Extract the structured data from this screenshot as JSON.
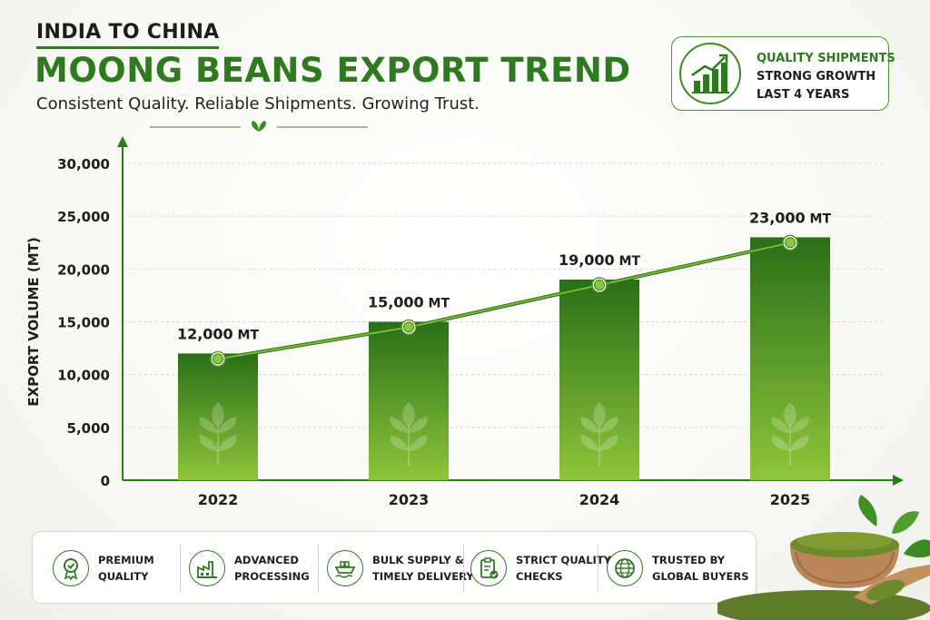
{
  "header": {
    "kicker": "INDIA TO CHINA",
    "title": "MOONG BEANS EXPORT TREND",
    "subtitle": "Consistent Quality. Reliable Shipments. Growing Trust."
  },
  "badge": {
    "lines": [
      "QUALITY SHIPMENTS",
      "STRONG GROWTH",
      "LAST 4 YEARS"
    ],
    "icon": "growth-bar-chart-icon"
  },
  "chart_data": {
    "type": "bar",
    "categories": [
      "2022",
      "2023",
      "2024",
      "2025"
    ],
    "values": [
      12000,
      15000,
      19000,
      23000
    ],
    "data_labels": [
      "12,000",
      "15,000",
      "19,000",
      "23,000"
    ],
    "data_label_unit": "MT",
    "ylabel": "EXPORT VOLUME (MT)",
    "ylim": [
      0,
      30000
    ],
    "y_ticks": [
      "0",
      "5,000",
      "10,000",
      "15,000",
      "20,000",
      "25,000",
      "30,000"
    ],
    "trend_line": true,
    "grid": true,
    "colors": {
      "bar_top": "#2a6f18",
      "bar_bottom": "#8ec53a",
      "line": "#4f9a1f",
      "axis": "#2f7a1f"
    }
  },
  "features": [
    {
      "icon": "quality-medal-icon",
      "lines": [
        "PREMIUM",
        "QUALITY"
      ]
    },
    {
      "icon": "factory-icon",
      "lines": [
        "ADVANCED",
        "PROCESSING"
      ]
    },
    {
      "icon": "cargo-ship-icon",
      "lines": [
        "BULK SUPPLY &",
        "TIMELY DELIVERY"
      ]
    },
    {
      "icon": "checklist-clipboard-icon",
      "lines": [
        "STRICT QUALITY",
        "CHECKS"
      ]
    },
    {
      "icon": "globe-icon",
      "lines": [
        "TRUSTED BY",
        "GLOBAL BUYERS"
      ]
    }
  ],
  "colors": {
    "brand_green": "#2f7a1f",
    "accent_light_green": "#8ec53a"
  }
}
